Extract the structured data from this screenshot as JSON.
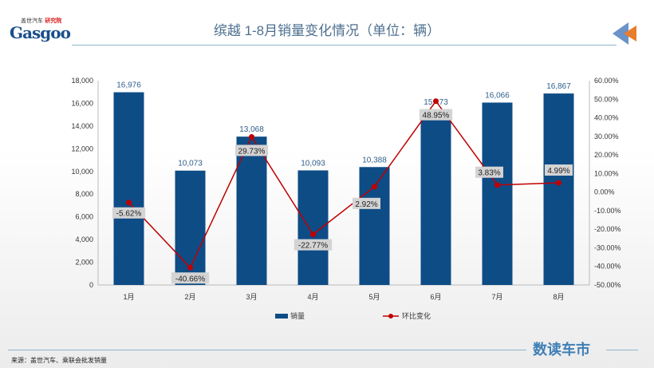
{
  "header": {
    "logo": "Gasgoo",
    "logo_sub": "盖世汽车",
    "logo_sub2": "研究院",
    "title": "缤越 1-8月销量变化情况（单位：辆）"
  },
  "footer": {
    "source": "来源：盖世汽车、乘联会批发销量",
    "brand": "数读车市"
  },
  "chart_data": {
    "type": "bar",
    "title": "缤越 1-8月销量变化情况（单位：辆）",
    "categories": [
      "1月",
      "2月",
      "3月",
      "4月",
      "5月",
      "6月",
      "7月",
      "8月"
    ],
    "series": [
      {
        "name": "销量",
        "type": "bar",
        "axis": "left",
        "color": "#0e4c86",
        "values": [
          16976,
          10073,
          13068,
          10093,
          10388,
          15473,
          16066,
          16867
        ],
        "labels": [
          "16,976",
          "10,073",
          "13,068",
          "10,093",
          "10,388",
          "15,473",
          "16,066",
          "16,867"
        ]
      },
      {
        "name": "环比变化",
        "type": "line",
        "axis": "right",
        "color": "#c00000",
        "values": [
          -5.62,
          -40.66,
          29.73,
          -22.77,
          2.92,
          48.95,
          3.83,
          4.99
        ],
        "labels": [
          "-5.62%",
          "-40.66%",
          "29.73%",
          "-22.77%",
          "2.92%",
          "48.95%",
          "3.83%",
          "4.99%"
        ]
      }
    ],
    "left_axis": {
      "ylim": [
        0,
        18000
      ],
      "ticks": [
        "0",
        "2,000",
        "4,000",
        "6,000",
        "8,000",
        "10,000",
        "12,000",
        "14,000",
        "16,000",
        "18,000"
      ]
    },
    "right_axis": {
      "ylim": [
        -50,
        60
      ],
      "ticks": [
        "-50.00%",
        "-40.00%",
        "-30.00%",
        "-20.00%",
        "-10.00%",
        "0.00%",
        "10.00%",
        "20.00%",
        "30.00%",
        "40.00%",
        "50.00%",
        "60.00%"
      ]
    },
    "legend": {
      "position": "bottom",
      "items": [
        "销量",
        "环比变化"
      ]
    }
  }
}
